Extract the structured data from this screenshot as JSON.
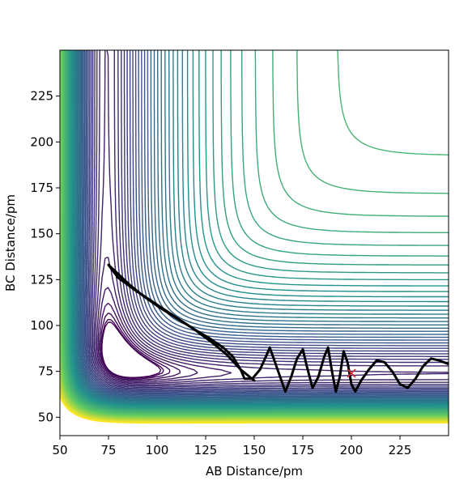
{
  "chart_data": {
    "type": "contour",
    "title": "",
    "xlabel": "AB Distance/pm",
    "ylabel": "BC Distance/pm",
    "xlim": [
      50,
      250
    ],
    "ylim": [
      40,
      250
    ],
    "xticks": [
      50,
      75,
      100,
      125,
      150,
      175,
      200,
      225
    ],
    "yticks": [
      50,
      75,
      100,
      125,
      150,
      175,
      200,
      225
    ],
    "grid": false,
    "colormap": [
      "#440154",
      "#3b528b",
      "#21918c",
      "#5ec962",
      "#fde725"
    ],
    "trajectory_color": "#000000",
    "trajectory": [
      [
        75,
        133
      ],
      [
        80,
        128
      ],
      [
        86,
        122
      ],
      [
        93,
        116
      ],
      [
        101,
        110
      ],
      [
        110,
        104
      ],
      [
        119,
        98
      ],
      [
        127,
        93
      ],
      [
        134,
        88
      ],
      [
        139,
        83
      ],
      [
        143,
        76
      ],
      [
        145,
        71
      ],
      [
        149,
        71
      ],
      [
        153,
        76
      ],
      [
        156,
        83
      ],
      [
        158,
        88
      ],
      [
        160,
        82
      ],
      [
        163,
        73
      ],
      [
        166,
        64
      ],
      [
        169,
        72
      ],
      [
        172,
        82
      ],
      [
        175,
        87
      ],
      [
        177,
        78
      ],
      [
        180,
        66
      ],
      [
        183,
        72
      ],
      [
        186,
        83
      ],
      [
        188,
        88
      ],
      [
        190,
        75
      ],
      [
        192,
        64
      ],
      [
        194,
        72
      ],
      [
        196,
        86
      ],
      [
        198,
        80
      ],
      [
        200,
        68
      ],
      [
        202,
        64
      ],
      [
        205,
        70
      ],
      [
        209,
        76
      ],
      [
        213,
        81
      ],
      [
        217,
        80
      ],
      [
        221,
        75
      ],
      [
        225,
        68
      ],
      [
        229,
        66
      ],
      [
        233,
        71
      ],
      [
        237,
        78
      ],
      [
        241,
        82
      ],
      [
        245,
        81
      ],
      [
        250,
        79
      ]
    ],
    "return_path": [
      [
        150,
        70
      ],
      [
        143,
        76
      ],
      [
        136,
        84
      ],
      [
        128,
        91
      ],
      [
        119,
        98
      ],
      [
        109,
        105
      ],
      [
        99,
        112
      ],
      [
        89,
        119
      ],
      [
        80,
        126
      ],
      [
        75,
        133
      ]
    ],
    "marker": {
      "symbol": "x",
      "x": 200,
      "y": 74,
      "color": "#d62728"
    }
  }
}
